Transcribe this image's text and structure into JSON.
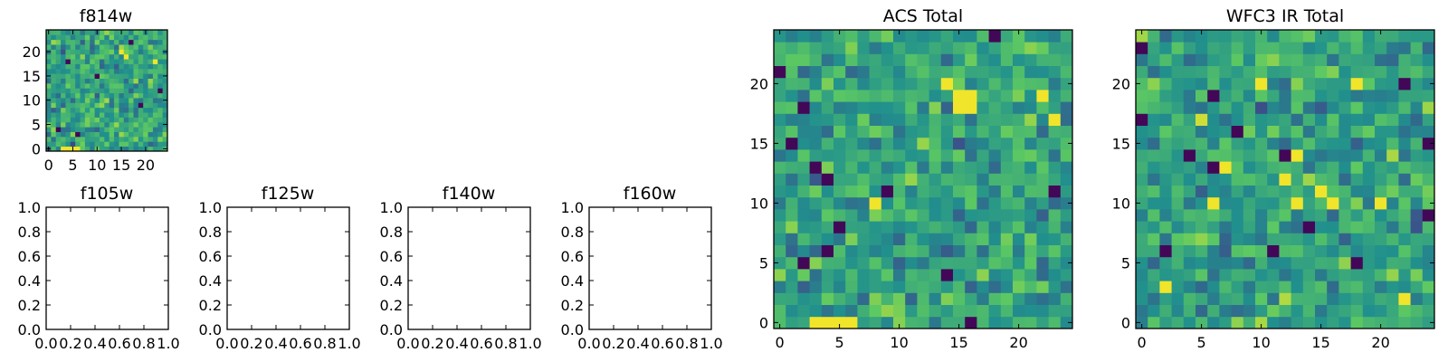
{
  "figure": {
    "colormap": "viridis",
    "colormap_stops": [
      "#440154",
      "#3b528b",
      "#21908d",
      "#5dc962",
      "#fde725"
    ]
  },
  "chart_data": [
    {
      "type": "heatmap",
      "title": "f814w",
      "grid_size": 25,
      "xticks": [
        0,
        5,
        10,
        15,
        20
      ],
      "yticks": [
        0,
        5,
        10,
        15,
        20
      ],
      "xlim": [
        -0.5,
        24.5
      ],
      "ylim": [
        -0.5,
        24.5
      ],
      "value_range": [
        0,
        1
      ],
      "seed": 11,
      "dark_cells": [
        [
          6,
          3
        ],
        [
          17,
          22
        ],
        [
          2,
          4
        ],
        [
          19,
          9
        ],
        [
          10,
          15
        ],
        [
          23,
          12
        ],
        [
          4,
          18
        ]
      ],
      "bright_cells": [
        [
          3,
          0
        ],
        [
          4,
          0
        ],
        [
          5,
          0
        ],
        [
          6,
          0
        ],
        [
          15,
          20
        ],
        [
          16,
          19
        ],
        [
          22,
          18
        ]
      ]
    },
    {
      "type": "heatmap",
      "title": "f105w",
      "empty": true,
      "xticks": [
        "0.0",
        "0.2",
        "0.4",
        "0.6",
        "0.8",
        "1.0"
      ],
      "yticks": [
        "0.0",
        "0.2",
        "0.4",
        "0.6",
        "0.8",
        "1.0"
      ],
      "xlim": [
        0,
        1
      ],
      "ylim": [
        0,
        1
      ]
    },
    {
      "type": "heatmap",
      "title": "f125w",
      "empty": true,
      "xticks": [
        "0.0",
        "0.2",
        "0.4",
        "0.6",
        "0.8",
        "1.0"
      ],
      "yticks": [
        "0.0",
        "0.2",
        "0.4",
        "0.6",
        "0.8",
        "1.0"
      ],
      "xlim": [
        0,
        1
      ],
      "ylim": [
        0,
        1
      ]
    },
    {
      "type": "heatmap",
      "title": "f140w",
      "empty": true,
      "xticks": [
        "0.0",
        "0.2",
        "0.4",
        "0.6",
        "0.8",
        "1.0"
      ],
      "yticks": [
        "0.0",
        "0.2",
        "0.4",
        "0.6",
        "0.8",
        "1.0"
      ],
      "xlim": [
        0,
        1
      ],
      "ylim": [
        0,
        1
      ]
    },
    {
      "type": "heatmap",
      "title": "f160w",
      "empty": true,
      "xticks": [
        "0.0",
        "0.2",
        "0.4",
        "0.6",
        "0.8",
        "1.0"
      ],
      "yticks": [
        "0.0",
        "0.2",
        "0.4",
        "0.6",
        "0.8",
        "1.0"
      ],
      "xlim": [
        0,
        1
      ],
      "ylim": [
        0,
        1
      ]
    },
    {
      "type": "heatmap",
      "title": "ACS Total",
      "grid_size": 25,
      "xticks": [
        0,
        5,
        10,
        15,
        20
      ],
      "yticks": [
        0,
        5,
        10,
        15,
        20
      ],
      "xlim": [
        -0.5,
        24.5
      ],
      "ylim": [
        -0.5,
        24.5
      ],
      "value_range": [
        0,
        1
      ],
      "seed": 29,
      "dark_cells": [
        [
          18,
          24
        ],
        [
          0,
          21
        ],
        [
          2,
          18
        ],
        [
          1,
          15
        ],
        [
          3,
          13
        ],
        [
          4,
          12
        ],
        [
          9,
          11
        ],
        [
          23,
          11
        ],
        [
          5,
          8
        ],
        [
          4,
          6
        ],
        [
          2,
          5
        ],
        [
          14,
          4
        ],
        [
          16,
          0
        ]
      ],
      "bright_cells": [
        [
          15,
          19
        ],
        [
          16,
          19
        ],
        [
          14,
          20
        ],
        [
          15,
          18
        ],
        [
          16,
          18
        ],
        [
          3,
          0
        ],
        [
          4,
          0
        ],
        [
          5,
          0
        ],
        [
          6,
          0
        ],
        [
          8,
          10
        ],
        [
          23,
          17
        ],
        [
          22,
          19
        ]
      ]
    },
    {
      "type": "heatmap",
      "title": "WFC3 IR Total",
      "grid_size": 25,
      "xticks": [
        0,
        5,
        10,
        15,
        20
      ],
      "yticks": [
        0,
        5,
        10,
        15,
        20
      ],
      "xlim": [
        -0.5,
        24.5
      ],
      "ylim": [
        -0.5,
        24.5
      ],
      "value_range": [
        0,
        1
      ],
      "seed": 47,
      "dark_cells": [
        [
          6,
          19
        ],
        [
          0,
          17
        ],
        [
          24,
          15
        ],
        [
          4,
          14
        ],
        [
          6,
          13
        ],
        [
          12,
          14
        ],
        [
          14,
          8
        ],
        [
          24,
          9
        ],
        [
          2,
          6
        ],
        [
          11,
          6
        ],
        [
          18,
          5
        ],
        [
          22,
          20
        ],
        [
          0,
          23
        ],
        [
          8,
          16
        ]
      ],
      "bright_cells": [
        [
          13,
          14
        ],
        [
          12,
          12
        ],
        [
          13,
          10
        ],
        [
          16,
          10
        ],
        [
          20,
          10
        ],
        [
          7,
          13
        ],
        [
          10,
          20
        ],
        [
          18,
          20
        ],
        [
          6,
          10
        ],
        [
          15,
          11
        ],
        [
          22,
          2
        ],
        [
          2,
          3
        ]
      ]
    }
  ]
}
